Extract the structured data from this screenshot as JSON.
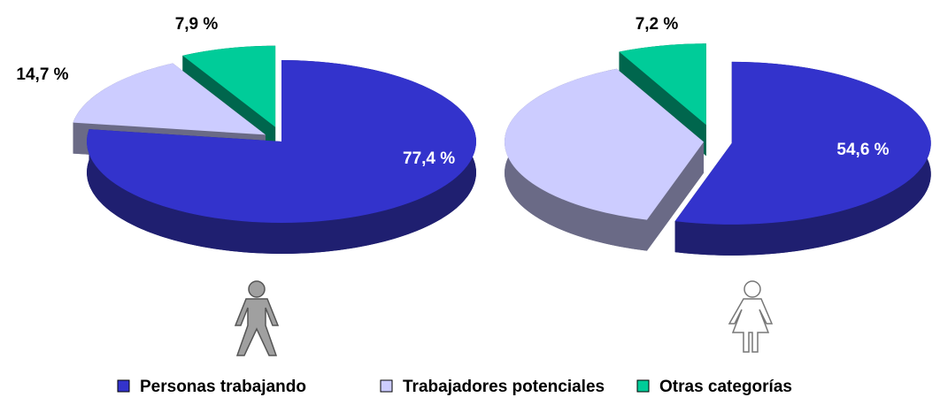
{
  "chart_data": [
    {
      "type": "pie",
      "values": [
        77.4,
        14.7,
        7.9
      ],
      "value_labels": [
        "77,4 %",
        "14,7 %",
        "7,9 %"
      ]
    },
    {
      "type": "pie",
      "values": [
        54.6,
        38.2,
        7.2
      ],
      "value_labels": [
        "54,6 %",
        null,
        "7,2 %"
      ]
    }
  ],
  "legend": {
    "categories": [
      "Personas trabajando",
      "Trabajadores potenciales",
      "Otras categorías"
    ],
    "colors": [
      "#3333cc",
      "#ccccff",
      "#00cc99"
    ],
    "side_colors": [
      "#1f1f70",
      "#6a6a86",
      "#00664d"
    ]
  }
}
